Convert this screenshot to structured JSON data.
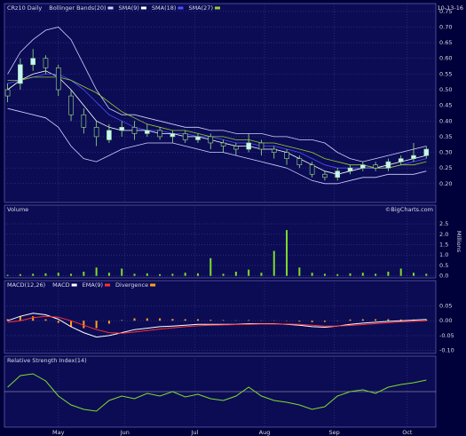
{
  "chart_data": [
    {
      "type": "candlestick",
      "title": "CRz10 Daily",
      "date": "10-13-16",
      "x": [
        0,
        4,
        8,
        12,
        16,
        20,
        24,
        28,
        32,
        36,
        40,
        44,
        48,
        52,
        56,
        60,
        64,
        68,
        72,
        76,
        80,
        84,
        88,
        92,
        96,
        100,
        104,
        108,
        112,
        116,
        120,
        124,
        128,
        132
      ],
      "xlim": [
        -1,
        135
      ],
      "open": [
        0.5,
        0.52,
        0.58,
        0.6,
        0.57,
        0.48,
        0.42,
        0.38,
        0.34,
        0.37,
        0.38,
        0.36,
        0.37,
        0.35,
        0.36,
        0.34,
        0.35,
        0.33,
        0.32,
        0.31,
        0.33,
        0.31,
        0.3,
        0.28,
        0.26,
        0.23,
        0.22,
        0.24,
        0.25,
        0.26,
        0.25,
        0.27,
        0.28,
        0.29
      ],
      "high": [
        0.52,
        0.6,
        0.63,
        0.61,
        0.58,
        0.5,
        0.44,
        0.4,
        0.39,
        0.4,
        0.4,
        0.39,
        0.38,
        0.37,
        0.37,
        0.36,
        0.36,
        0.34,
        0.33,
        0.36,
        0.34,
        0.32,
        0.31,
        0.29,
        0.27,
        0.24,
        0.25,
        0.26,
        0.27,
        0.27,
        0.28,
        0.29,
        0.33,
        0.32
      ],
      "low": [
        0.46,
        0.5,
        0.56,
        0.55,
        0.48,
        0.4,
        0.36,
        0.32,
        0.33,
        0.35,
        0.34,
        0.35,
        0.34,
        0.33,
        0.33,
        0.33,
        0.31,
        0.3,
        0.29,
        0.3,
        0.29,
        0.28,
        0.26,
        0.25,
        0.22,
        0.21,
        0.21,
        0.23,
        0.24,
        0.24,
        0.24,
        0.26,
        0.27,
        0.28
      ],
      "close": [
        0.48,
        0.58,
        0.6,
        0.57,
        0.5,
        0.42,
        0.38,
        0.35,
        0.37,
        0.38,
        0.36,
        0.37,
        0.35,
        0.36,
        0.34,
        0.35,
        0.33,
        0.32,
        0.31,
        0.33,
        0.31,
        0.3,
        0.28,
        0.26,
        0.23,
        0.22,
        0.24,
        0.25,
        0.26,
        0.25,
        0.27,
        0.28,
        0.29,
        0.31
      ],
      "up_color": "#c8f4ff",
      "down_color": "#0c0c55",
      "wick_color": "#9fe07f",
      "series": [
        {
          "name": "Bollinger Bands(20)",
          "color": "#d0d0ff",
          "upper": [
            0.55,
            0.62,
            0.66,
            0.69,
            0.7,
            0.66,
            0.58,
            0.5,
            0.44,
            0.42,
            0.42,
            0.41,
            0.4,
            0.39,
            0.38,
            0.38,
            0.37,
            0.37,
            0.36,
            0.36,
            0.36,
            0.35,
            0.35,
            0.34,
            0.34,
            0.33,
            0.3,
            0.28,
            0.27,
            0.28,
            0.29,
            0.3,
            0.31,
            0.32
          ],
          "lower": [
            0.44,
            0.43,
            0.42,
            0.41,
            0.38,
            0.32,
            0.28,
            0.27,
            0.29,
            0.31,
            0.32,
            0.33,
            0.33,
            0.33,
            0.32,
            0.31,
            0.3,
            0.3,
            0.29,
            0.28,
            0.27,
            0.26,
            0.25,
            0.23,
            0.21,
            0.2,
            0.2,
            0.21,
            0.22,
            0.22,
            0.23,
            0.23,
            0.23,
            0.24
          ]
        },
        {
          "name": "SMA(9)",
          "color": "#ffffff",
          "values": [
            0.5,
            0.53,
            0.55,
            0.56,
            0.54,
            0.5,
            0.45,
            0.4,
            0.38,
            0.37,
            0.37,
            0.37,
            0.36,
            0.36,
            0.35,
            0.35,
            0.34,
            0.33,
            0.32,
            0.32,
            0.31,
            0.31,
            0.3,
            0.28,
            0.26,
            0.24,
            0.23,
            0.24,
            0.25,
            0.25,
            0.26,
            0.27,
            0.28,
            0.29
          ]
        },
        {
          "name": "SMA(18)",
          "color": "#5050ff",
          "values": [
            0.52,
            0.53,
            0.54,
            0.55,
            0.55,
            0.53,
            0.5,
            0.46,
            0.42,
            0.4,
            0.38,
            0.37,
            0.37,
            0.36,
            0.36,
            0.35,
            0.35,
            0.34,
            0.33,
            0.33,
            0.32,
            0.32,
            0.31,
            0.3,
            0.28,
            0.26,
            0.25,
            0.25,
            0.25,
            0.25,
            0.25,
            0.26,
            0.27,
            0.28
          ]
        },
        {
          "name": "SMA(27)",
          "color": "#9acd32",
          "values": [
            0.53,
            0.53,
            0.54,
            0.54,
            0.54,
            0.53,
            0.51,
            0.49,
            0.46,
            0.43,
            0.41,
            0.39,
            0.38,
            0.37,
            0.37,
            0.36,
            0.35,
            0.35,
            0.34,
            0.34,
            0.33,
            0.33,
            0.32,
            0.31,
            0.3,
            0.28,
            0.27,
            0.26,
            0.26,
            0.25,
            0.25,
            0.26,
            0.26,
            0.27
          ]
        }
      ],
      "ylim": [
        0.14,
        0.775
      ],
      "yticks": [
        {
          "value": 0.2,
          "label": "0.20"
        },
        0.25,
        {
          "value": 0.3,
          "label": "0.30"
        },
        0.35,
        {
          "value": 0.4,
          "label": "0.40"
        },
        0.45,
        {
          "value": 0.5,
          "label": "0.50"
        },
        0.55,
        {
          "value": 0.6,
          "label": "0.60"
        },
        0.65,
        {
          "value": 0.7,
          "label": "0.70"
        },
        0.75
      ],
      "grid": true
    },
    {
      "type": "bar",
      "title": "Volume",
      "unit_label": "Millions",
      "credit": "©BigCharts.com",
      "color": "#7fdc2a",
      "values": [
        0.05,
        0.08,
        0.1,
        0.12,
        0.15,
        0.1,
        0.2,
        0.4,
        0.15,
        0.35,
        0.1,
        0.12,
        0.08,
        0.1,
        0.15,
        0.12,
        0.85,
        0.1,
        0.2,
        0.3,
        0.15,
        1.2,
        2.2,
        0.4,
        0.15,
        0.1,
        0.08,
        0.12,
        0.15,
        0.1,
        0.2,
        0.35,
        0.15,
        0.1
      ],
      "ylim": [
        -0.1,
        3.4
      ],
      "yticks": [
        {
          "value": 0,
          "label": "0.0"
        },
        0.5,
        {
          "value": 1,
          "label": "1.0"
        },
        1.5,
        {
          "value": 2,
          "label": "2.0"
        },
        2.5
      ],
      "grid": true
    },
    {
      "type": "macd",
      "title": "MACD(12,26)",
      "series": [
        {
          "name": "MACD",
          "color": "#ffffff",
          "values": [
            0.0,
            0.015,
            0.025,
            0.02,
            0.005,
            -0.02,
            -0.04,
            -0.055,
            -0.05,
            -0.04,
            -0.03,
            -0.025,
            -0.02,
            -0.018,
            -0.015,
            -0.012,
            -0.012,
            -0.012,
            -0.012,
            -0.01,
            -0.01,
            -0.01,
            -0.012,
            -0.015,
            -0.02,
            -0.022,
            -0.018,
            -0.012,
            -0.008,
            -0.005,
            -0.002,
            0.0,
            0.002,
            0.004
          ]
        },
        {
          "name": "EMA(9)",
          "color": "#ff3030",
          "values": [
            -0.005,
            0.0,
            0.01,
            0.015,
            0.012,
            0.0,
            -0.015,
            -0.03,
            -0.04,
            -0.042,
            -0.038,
            -0.033,
            -0.028,
            -0.024,
            -0.02,
            -0.017,
            -0.015,
            -0.014,
            -0.013,
            -0.012,
            -0.011,
            -0.011,
            -0.011,
            -0.012,
            -0.015,
            -0.018,
            -0.018,
            -0.016,
            -0.013,
            -0.01,
            -0.007,
            -0.004,
            -0.002,
            0.0
          ]
        },
        {
          "name": "Divergence",
          "color": "#ffa020",
          "bars": true,
          "values": [
            0.005,
            0.015,
            0.015,
            0.005,
            -0.007,
            -0.02,
            -0.025,
            -0.025,
            -0.01,
            0.002,
            0.008,
            0.008,
            0.008,
            0.006,
            0.005,
            0.005,
            0.003,
            0.002,
            0.001,
            0.002,
            0.001,
            0.001,
            -0.001,
            -0.003,
            -0.005,
            -0.004,
            0.0,
            0.004,
            0.005,
            0.005,
            0.005,
            0.004,
            0.004,
            0.004
          ]
        }
      ],
      "ylim": [
        -0.11,
        0.135
      ],
      "yticks": [
        0.05,
        {
          "value": 0,
          "label": "0.00"
        },
        -0.05,
        {
          "value": -0.1,
          "label": "-0.10"
        }
      ],
      "grid": true
    },
    {
      "type": "line",
      "title": "Relative Strength Index(14)",
      "color": "#7fdc2a",
      "values": [
        55,
        68,
        70,
        62,
        45,
        35,
        30,
        28,
        40,
        45,
        42,
        48,
        45,
        50,
        44,
        47,
        42,
        40,
        45,
        55,
        45,
        40,
        38,
        35,
        30,
        33,
        45,
        50,
        52,
        48,
        55,
        58,
        60,
        63
      ],
      "ylim": [
        10,
        90
      ],
      "reference_line": 50,
      "xticks": [
        {
          "value": 16,
          "label": "May"
        },
        {
          "value": 37,
          "label": "Jun"
        },
        {
          "value": 59,
          "label": "Jul"
        },
        {
          "value": 81,
          "label": "Aug"
        },
        {
          "value": 103,
          "label": "Sep"
        },
        {
          "value": 126,
          "label": "Oct"
        }
      ],
      "grid": true
    }
  ]
}
